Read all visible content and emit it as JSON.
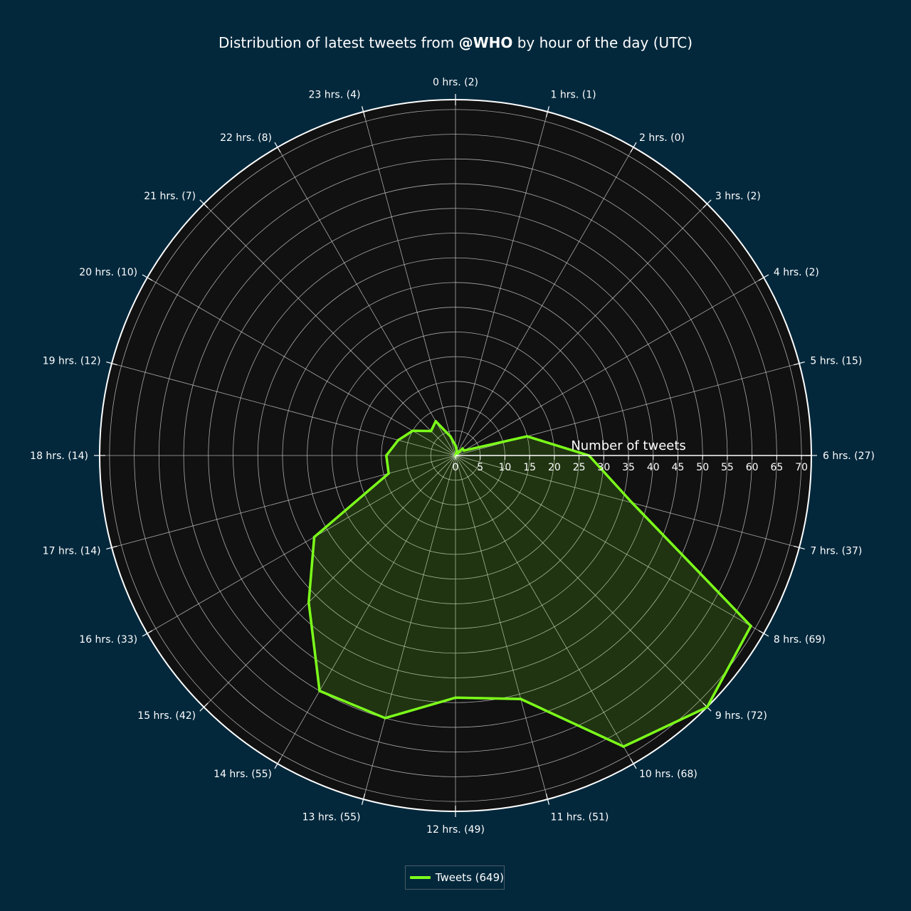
{
  "chart_data": {
    "type": "radar",
    "title_prefix": "Distribution of latest tweets from ",
    "title_handle": "@WHO",
    "title_suffix": " by hour of the day (UTC)",
    "radial_axis_title": "Number of tweets",
    "categories": [
      "0 hrs. (2)",
      "1 hrs. (1)",
      "2 hrs. (0)",
      "3 hrs. (2)",
      "4 hrs. (2)",
      "5 hrs. (15)",
      "6 hrs. (27)",
      "7 hrs. (37)",
      "8 hrs. (69)",
      "9 hrs. (72)",
      "10 hrs. (68)",
      "11 hrs. (51)",
      "12 hrs. (49)",
      "13 hrs. (55)",
      "14 hrs. (55)",
      "15 hrs. (42)",
      "16 hrs. (33)",
      "17 hrs. (14)",
      "18 hrs. (14)",
      "19 hrs. (12)",
      "20 hrs. (10)",
      "21 hrs. (7)",
      "22 hrs. (8)",
      "23 hrs. (4)"
    ],
    "series": [
      {
        "name": "Tweets (649)",
        "values": [
          2,
          1,
          0,
          2,
          2,
          15,
          27,
          37,
          69,
          72,
          68,
          51,
          49,
          55,
          55,
          42,
          33,
          14,
          14,
          12,
          10,
          7,
          8,
          4
        ]
      }
    ],
    "radial_range": [
      0,
      72
    ],
    "radial_ticks": [
      0,
      5,
      10,
      15,
      20,
      25,
      30,
      35,
      40,
      45,
      50,
      55,
      60,
      65,
      70
    ],
    "grid": true,
    "legend_position": "bottom-center"
  },
  "colors": {
    "page_background": "#03283c",
    "plot_background": "#111111",
    "grid": "#cfcfcf",
    "series_line": "#7cff1a",
    "series_fill": "rgba(124,255,26,0.15)",
    "text": "#ffffff"
  }
}
